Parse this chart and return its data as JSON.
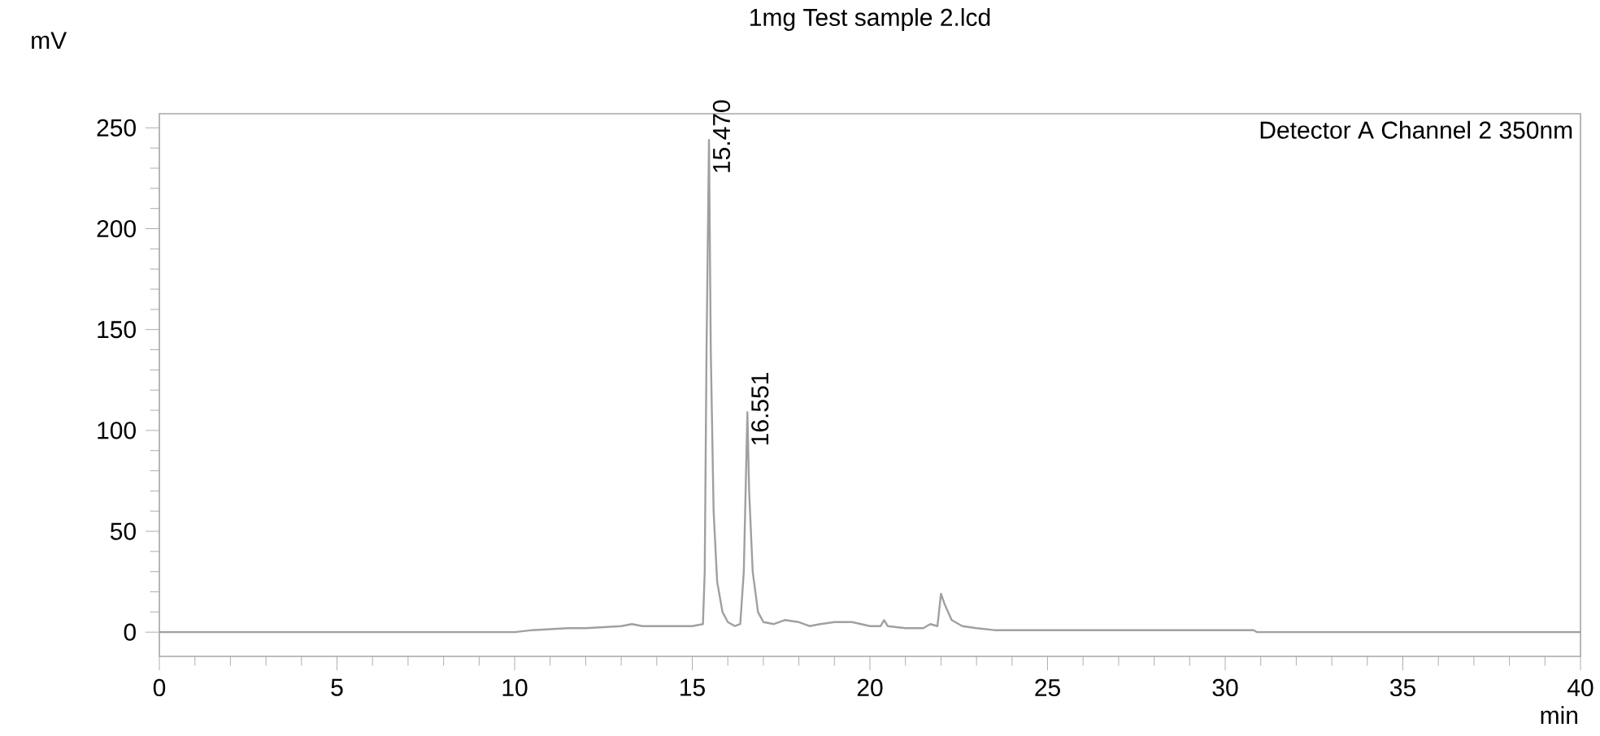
{
  "chart_data": {
    "type": "line",
    "title": "1mg Test sample 2.lcd",
    "xlabel": "min",
    "ylabel": "mV",
    "x": [
      0,
      10,
      10.5,
      11.5,
      12,
      13,
      13.3,
      13.6,
      14.2,
      15.0,
      15.3,
      15.35,
      15.4,
      15.47,
      15.52,
      15.6,
      15.7,
      15.85,
      16.0,
      16.2,
      16.35,
      16.45,
      16.551,
      16.6,
      16.7,
      16.85,
      17.0,
      17.3,
      17.6,
      18,
      18.3,
      18.6,
      19,
      19.5,
      20,
      20.3,
      20.4,
      20.5,
      21,
      21.5,
      21.7,
      21.9,
      22.0,
      22.1,
      22.3,
      22.6,
      23,
      23.5,
      24,
      25,
      30.8,
      30.9,
      40
    ],
    "series": [
      {
        "color": "#a0a0a0",
        "values": [
          0,
          0,
          1,
          2,
          2,
          3,
          4,
          3,
          3,
          3,
          4,
          30,
          138,
          244,
          140,
          60,
          25,
          10,
          5,
          3,
          4,
          30,
          109,
          70,
          30,
          10,
          5,
          4,
          6,
          5,
          3,
          4,
          5,
          5,
          3,
          3,
          6,
          3,
          2,
          2,
          4,
          3,
          19,
          14,
          6,
          3,
          2,
          1,
          1,
          1,
          1,
          0,
          0
        ]
      }
    ],
    "xlim": [
      0,
      40
    ],
    "ylim": [
      -12,
      257
    ],
    "xticks": [
      0,
      5,
      10,
      15,
      20,
      25,
      30,
      35,
      40
    ],
    "yticks": [
      0,
      50,
      100,
      150,
      200,
      250
    ],
    "grid": false,
    "marker": "none",
    "line_style": "solid",
    "annotations": [
      {
        "text": "15.470",
        "x": 15.47,
        "y": 244
      },
      {
        "text": "16.551",
        "x": 16.551,
        "y": 109
      },
      "Detector A Channel 2 350nm"
    ]
  }
}
